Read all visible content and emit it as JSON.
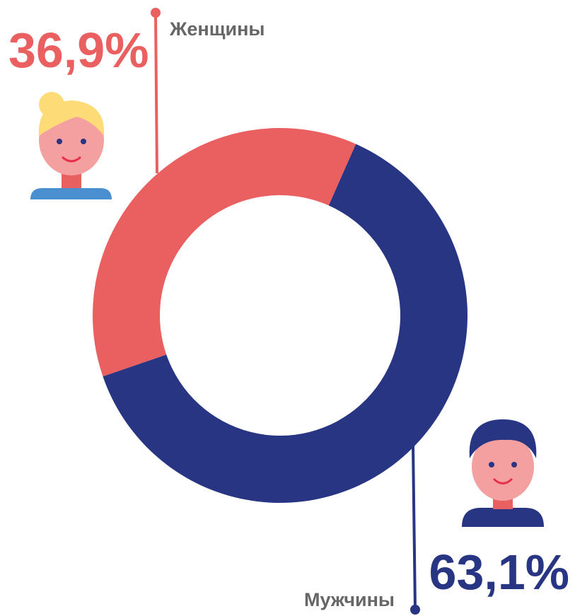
{
  "chart_data": {
    "type": "donut",
    "categories": [
      "Женщины",
      "Мужчины"
    ],
    "values": [
      36.9,
      63.1
    ],
    "value_labels": [
      "36,9%",
      "63,1%"
    ],
    "colors": [
      "#ea5f5f",
      "#283583"
    ]
  }
}
